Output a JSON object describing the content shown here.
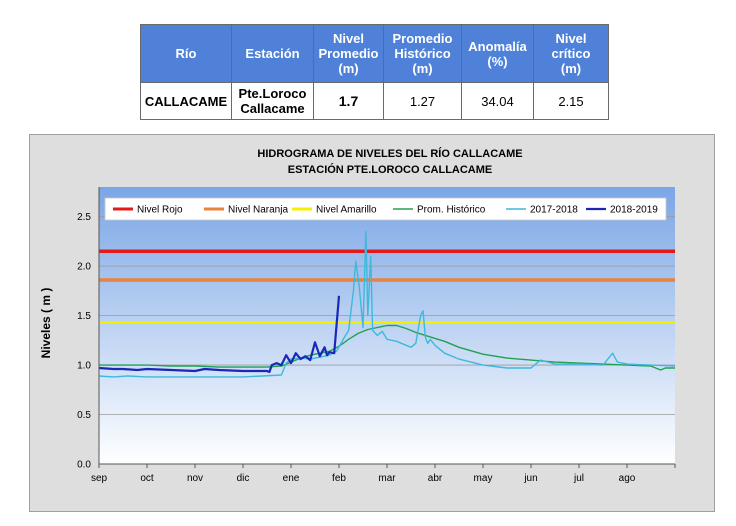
{
  "table": {
    "headers": [
      [
        "Río"
      ],
      [
        "Estación"
      ],
      [
        "Nivel",
        "Promedio",
        "(m)"
      ],
      [
        "Promedio",
        "Histórico",
        "(m)"
      ],
      [
        "Anomalía",
        "(%)"
      ],
      [
        "Nivel",
        "crítico",
        "(m)"
      ]
    ],
    "row": {
      "rio": "CALLACAME",
      "estacion_1": "Pte.Loroco",
      "estacion_2": "Callacame",
      "nivel_promedio": "1.7",
      "promedio_historico": "1.27",
      "anomalia": "34.04",
      "nivel_critico": "2.15"
    }
  },
  "chart_data": {
    "type": "line",
    "title": "HIDROGRAMA DE NIVELES DEL RÍO CALLACAME",
    "subtitle": "ESTACIÓN PTE.LOROCO CALLACAME",
    "ylabel": "Niveles ( m )",
    "xlabel": "",
    "ylim": [
      0,
      2.8
    ],
    "yticks": [
      "0.0",
      "0.5",
      "1.0",
      "1.5",
      "2.0",
      "2.5"
    ],
    "xticks": [
      "sep",
      "oct",
      "nov",
      "dic",
      "ene",
      "feb",
      "mar",
      "abr",
      "may",
      "jun",
      "jul",
      "ago"
    ],
    "x_unit": "month index from sep (0) to end of ago (12)",
    "grid": true,
    "legend_position": "top",
    "thresholds": [
      {
        "name": "Nivel Rojo",
        "value": 2.15,
        "color": "#e21a1a"
      },
      {
        "name": "Nivel Naranja",
        "value": 1.86,
        "color": "#e8823c"
      },
      {
        "name": "Nivel Amarillo",
        "value": 1.43,
        "color": "#f2f200"
      }
    ],
    "series": [
      {
        "name": "Prom. Histórico",
        "color": "#22a052",
        "x": [
          0,
          0.5,
          1,
          1.5,
          2,
          2.5,
          3,
          3.5,
          3.8,
          4.0,
          4.2,
          4.4,
          4.6,
          4.8,
          5.0,
          5.2,
          5.4,
          5.6,
          5.8,
          6.0,
          6.2,
          6.4,
          6.6,
          6.8,
          7.0,
          7.2,
          7.5,
          8,
          8.5,
          9,
          9.5,
          10,
          10.5,
          11,
          11.5,
          11.7,
          11.8,
          12
        ],
        "values": [
          1.0,
          1.0,
          1.0,
          0.99,
          0.99,
          0.98,
          0.98,
          0.98,
          0.99,
          1.03,
          1.07,
          1.1,
          1.12,
          1.14,
          1.19,
          1.26,
          1.32,
          1.36,
          1.38,
          1.4,
          1.4,
          1.37,
          1.33,
          1.3,
          1.27,
          1.24,
          1.18,
          1.11,
          1.07,
          1.05,
          1.03,
          1.02,
          1.01,
          1.0,
          0.99,
          0.95,
          0.97,
          0.97
        ]
      },
      {
        "name": "2017-2018",
        "color": "#3fb8dc",
        "x": [
          0,
          0.3,
          0.6,
          1,
          1.5,
          2,
          2.5,
          3,
          3.4,
          3.8,
          3.9,
          4.0,
          4.2,
          4.4,
          4.6,
          4.8,
          4.95,
          5.1,
          5.2,
          5.3,
          5.35,
          5.42,
          5.5,
          5.56,
          5.6,
          5.66,
          5.7,
          5.8,
          5.9,
          6.0,
          6.2,
          6.4,
          6.5,
          6.6,
          6.7,
          6.75,
          6.8,
          6.85,
          6.9,
          7.0,
          7.2,
          7.5,
          8,
          8.5,
          9,
          9.2,
          9.5,
          10,
          10.5,
          10.7,
          10.8,
          11,
          11.5,
          12
        ],
        "values": [
          0.89,
          0.88,
          0.89,
          0.88,
          0.88,
          0.88,
          0.88,
          0.88,
          0.89,
          0.9,
          1.02,
          1.06,
          1.07,
          1.06,
          1.08,
          1.1,
          1.14,
          1.27,
          1.35,
          1.75,
          2.05,
          1.8,
          1.38,
          2.35,
          1.5,
          2.1,
          1.35,
          1.3,
          1.34,
          1.26,
          1.24,
          1.2,
          1.18,
          1.22,
          1.5,
          1.55,
          1.28,
          1.22,
          1.26,
          1.2,
          1.12,
          1.06,
          1.0,
          0.97,
          0.97,
          1.05,
          1.01,
          1.01,
          1.0,
          1.12,
          1.03,
          1.01,
          1.0,
          0.99
        ]
      },
      {
        "name": "2018-2019",
        "color": "#1a28b8",
        "x": [
          0,
          0.3,
          0.5,
          0.8,
          1,
          1.5,
          2,
          2.2,
          2.5,
          3,
          3.3,
          3.5,
          3.55,
          3.6,
          3.7,
          3.8,
          3.9,
          4.0,
          4.1,
          4.2,
          4.3,
          4.4,
          4.5,
          4.6,
          4.7,
          4.75,
          4.8,
          4.9,
          5.0
        ],
        "values": [
          0.97,
          0.96,
          0.96,
          0.95,
          0.96,
          0.95,
          0.94,
          0.96,
          0.95,
          0.94,
          0.94,
          0.94,
          0.93,
          1.0,
          1.02,
          1.0,
          1.1,
          1.02,
          1.12,
          1.06,
          1.09,
          1.05,
          1.23,
          1.09,
          1.18,
          1.1,
          1.13,
          1.12,
          1.7
        ]
      }
    ]
  }
}
